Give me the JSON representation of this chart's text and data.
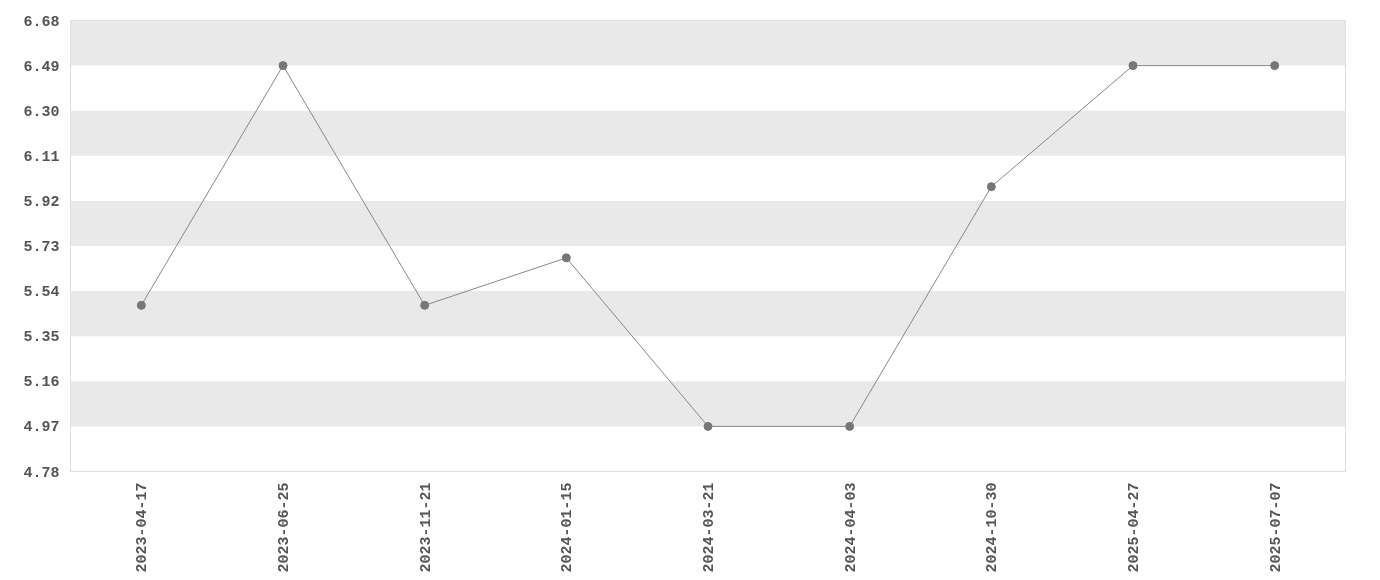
{
  "chart_data": {
    "type": "line",
    "categories": [
      "2023-04-17",
      "2023-06-25",
      "2023-11-21",
      "2024-01-15",
      "2024-03-21",
      "2024-04-03",
      "2024-10-30",
      "2025-04-27",
      "2025-07-07"
    ],
    "values": [
      5.48,
      6.49,
      5.48,
      5.68,
      4.97,
      4.97,
      5.98,
      6.49,
      6.49
    ],
    "color": "#888888",
    "ylim": [
      4.78,
      6.68
    ],
    "yticks": [
      4.78,
      4.97,
      5.16,
      5.35,
      5.54,
      5.73,
      5.92,
      6.11,
      {
        "value": 6.3,
        "label": "6.30"
      },
      6.49,
      6.68
    ],
    "bands": [
      {
        "axis": "y",
        "from": 4.97,
        "to": 5.16,
        "color": "#e9e9e9"
      },
      {
        "axis": "y",
        "from": 5.35,
        "to": 5.54,
        "color": "#e9e9e9"
      },
      {
        "axis": "y",
        "from": 5.73,
        "to": 5.92,
        "color": "#e9e9e9"
      },
      {
        "axis": "y",
        "from": 6.11,
        "to": 6.3,
        "color": "#e9e9e9"
      },
      {
        "axis": "y",
        "from": 6.49,
        "to": 6.68,
        "color": "#e9e9e9"
      }
    ],
    "marker": "circle",
    "line_style": "solid"
  }
}
